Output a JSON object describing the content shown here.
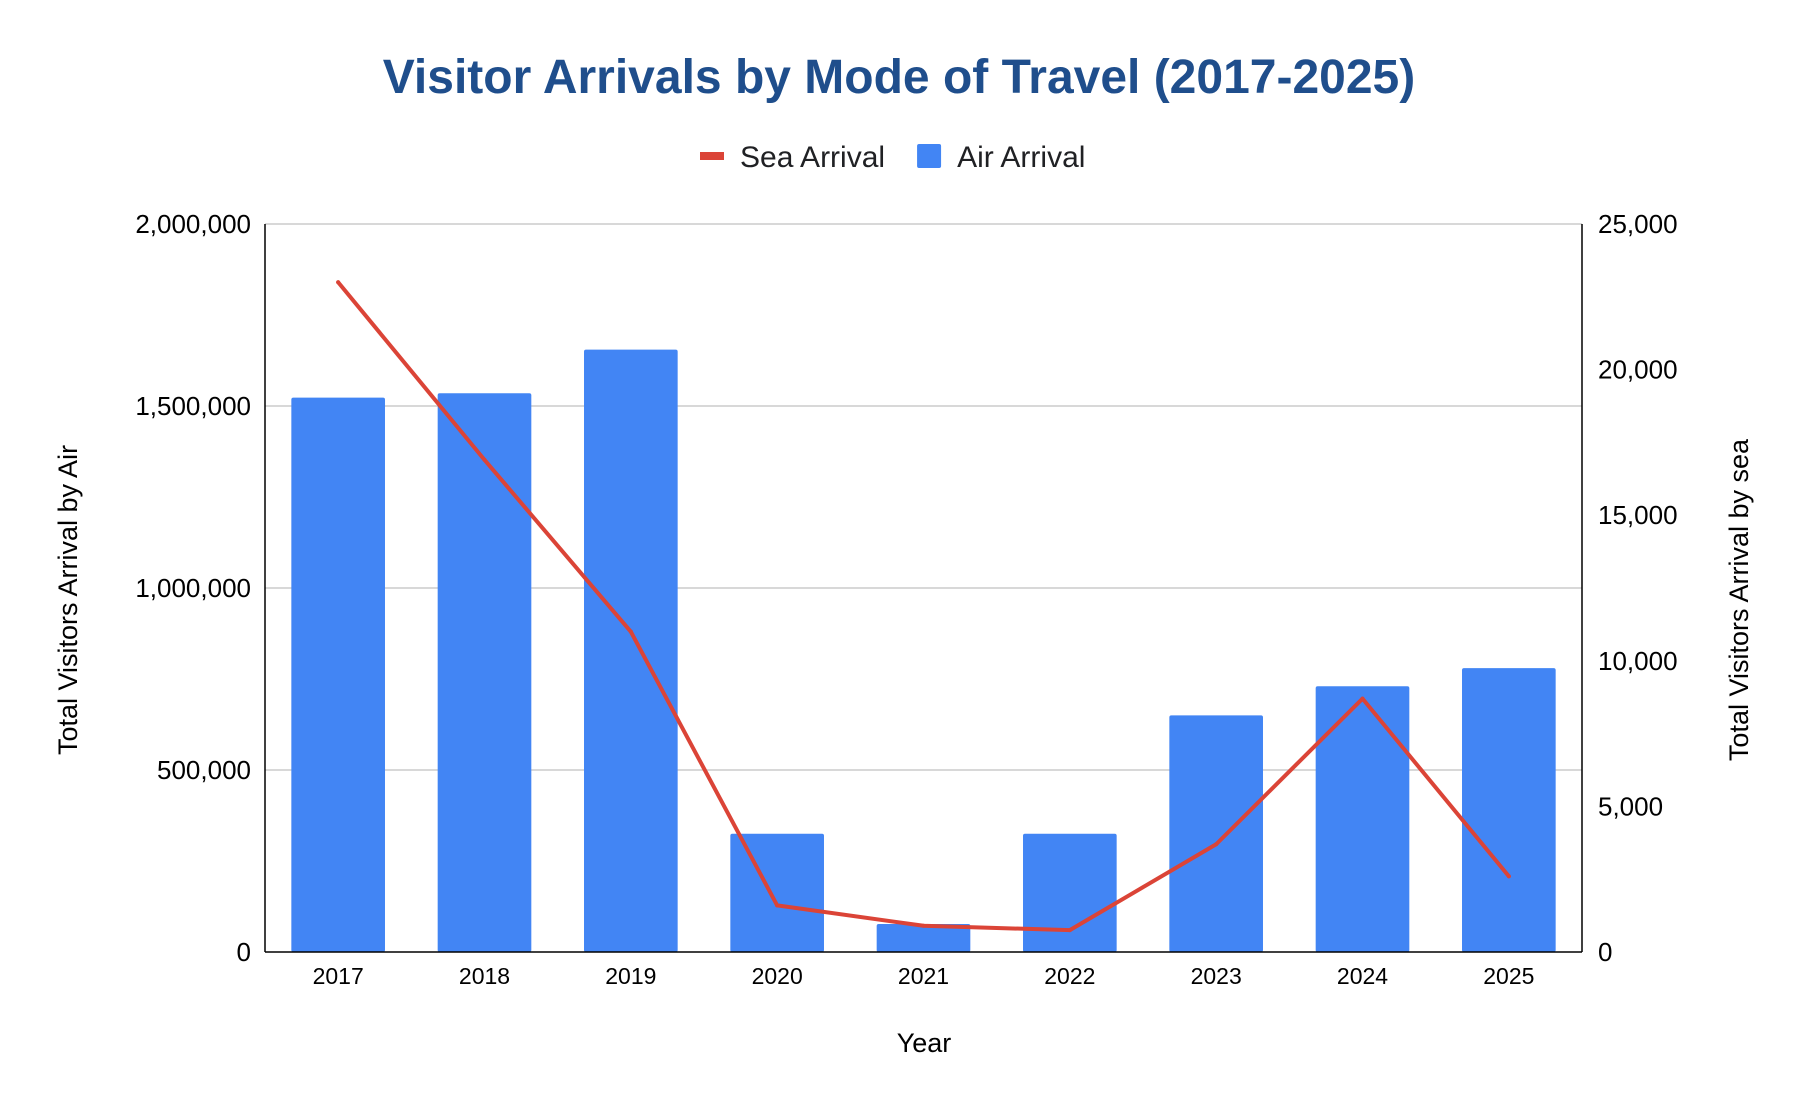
{
  "chart_data": {
    "type": "bar",
    "title": "Visitor Arrivals by Mode of Travel (2017-2025)",
    "xlabel": "Year",
    "ylabel_left": "Total Visitors Arrival by Air",
    "ylabel_right": "Total Visitors Arrival by sea",
    "categories": [
      "2017",
      "2018",
      "2019",
      "2020",
      "2021",
      "2022",
      "2023",
      "2024",
      "2025"
    ],
    "series": [
      {
        "name": "Air Arrival",
        "type": "bar",
        "axis": "left",
        "color": "#4285f4",
        "values": [
          1523000,
          1535000,
          1655000,
          325000,
          77000,
          325000,
          650000,
          730000,
          780000
        ]
      },
      {
        "name": "Sea Arrival",
        "type": "line",
        "axis": "right",
        "color": "#db4437",
        "values": [
          23000,
          16900,
          11000,
          1600,
          900,
          750,
          3700,
          8700,
          2600
        ]
      }
    ],
    "y_left": {
      "min": 0,
      "max": 2000000,
      "ticks": [
        0,
        500000,
        1000000,
        1500000,
        2000000
      ],
      "tick_labels": [
        "0",
        "500,000",
        "1,000,000",
        "1,500,000",
        "2,000,000"
      ]
    },
    "y_right": {
      "min": 0,
      "max": 25000,
      "ticks": [
        0,
        5000,
        10000,
        15000,
        20000,
        25000
      ],
      "tick_labels": [
        "0",
        "5,000",
        "10,000",
        "15,000",
        "20,000",
        "25,000"
      ]
    },
    "legend_order": [
      "Sea Arrival",
      "Air Arrival"
    ],
    "legend_position": "top",
    "grid": true,
    "colors": {
      "title": "#1f4e8c",
      "gridline": "#cccccc",
      "axis": "#000000"
    }
  }
}
